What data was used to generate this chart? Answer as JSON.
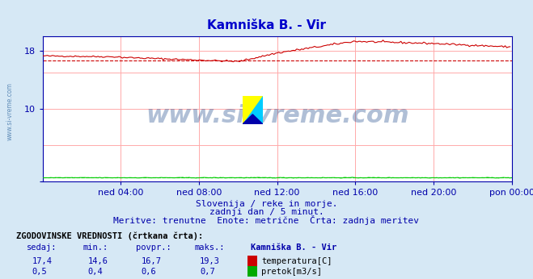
{
  "title": "Kamniška B. - Vir",
  "title_color": "#0000cc",
  "bg_color": "#d6e8f5",
  "plot_bg_color": "#ffffff",
  "grid_color": "#ffaaaa",
  "axis_color": "#0000aa",
  "xlabel_ticks": [
    "ned 04:00",
    "ned 08:00",
    "ned 12:00",
    "ned 16:00",
    "ned 20:00",
    "pon 00:00"
  ],
  "ylim": [
    0,
    20
  ],
  "xlim": [
    0,
    288
  ],
  "temp_color": "#cc0000",
  "flow_color": "#00cc00",
  "avg_temp": 16.7,
  "avg_flow": 0.6,
  "watermark_text": "www.si-vreme.com",
  "watermark_color": "#1e4a8c",
  "subtitle1": "Slovenija / reke in morje.",
  "subtitle2": "zadnji dan / 5 minut.",
  "subtitle3": "Meritve: trenutne  Enote: metrične  Črta: zadnja meritev",
  "subtitle_color": "#0000aa",
  "table_header": "ZGODOVINSKE VREDNOSTI (črtkana črta):",
  "col_headers": [
    "sedaj:",
    "min.:",
    "povpr.:",
    "maks.:",
    "Kamniška B. - Vir"
  ],
  "row1_vals": [
    "17,4",
    "14,6",
    "16,7",
    "19,3"
  ],
  "row1_label": "temperatura[C]",
  "row1_color": "#cc0000",
  "row2_vals": [
    "0,5",
    "0,4",
    "0,6",
    "0,7"
  ],
  "row2_label": "pretok[m3/s]",
  "row2_color": "#00aa00",
  "left_label_color": "#4477aa"
}
